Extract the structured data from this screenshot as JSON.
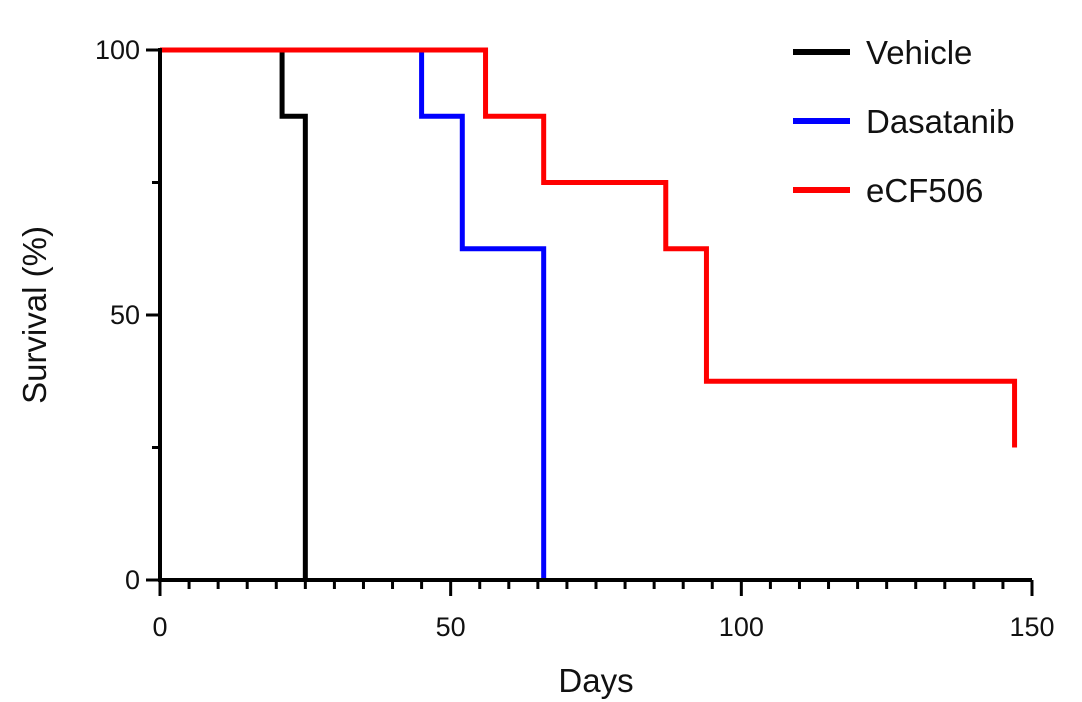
{
  "chart_data": {
    "type": "line",
    "step": true,
    "xlabel": "Days",
    "ylabel": "Survival (%)",
    "xlim": [
      0,
      150
    ],
    "ylim": [
      0,
      100
    ],
    "xticks": [
      0,
      50,
      100,
      150
    ],
    "yticks": [
      0,
      50,
      100
    ],
    "x_minor_step": 5,
    "y_minor_step": 25,
    "grid": false,
    "legend_position": "top-right",
    "series": [
      {
        "name": "Vehicle",
        "color": "#000000",
        "x": [
          0,
          21,
          25
        ],
        "y": [
          100,
          87.5,
          0
        ]
      },
      {
        "name": "Dasatanib",
        "color": "#0000ff",
        "x": [
          0,
          45,
          52,
          66
        ],
        "y": [
          100,
          87.5,
          62.5,
          0
        ]
      },
      {
        "name": "eCF506",
        "color": "#ff0000",
        "x": [
          0,
          56,
          66,
          87,
          94,
          147
        ],
        "y": [
          100,
          87.5,
          75,
          62.5,
          37.5,
          25
        ]
      }
    ]
  }
}
